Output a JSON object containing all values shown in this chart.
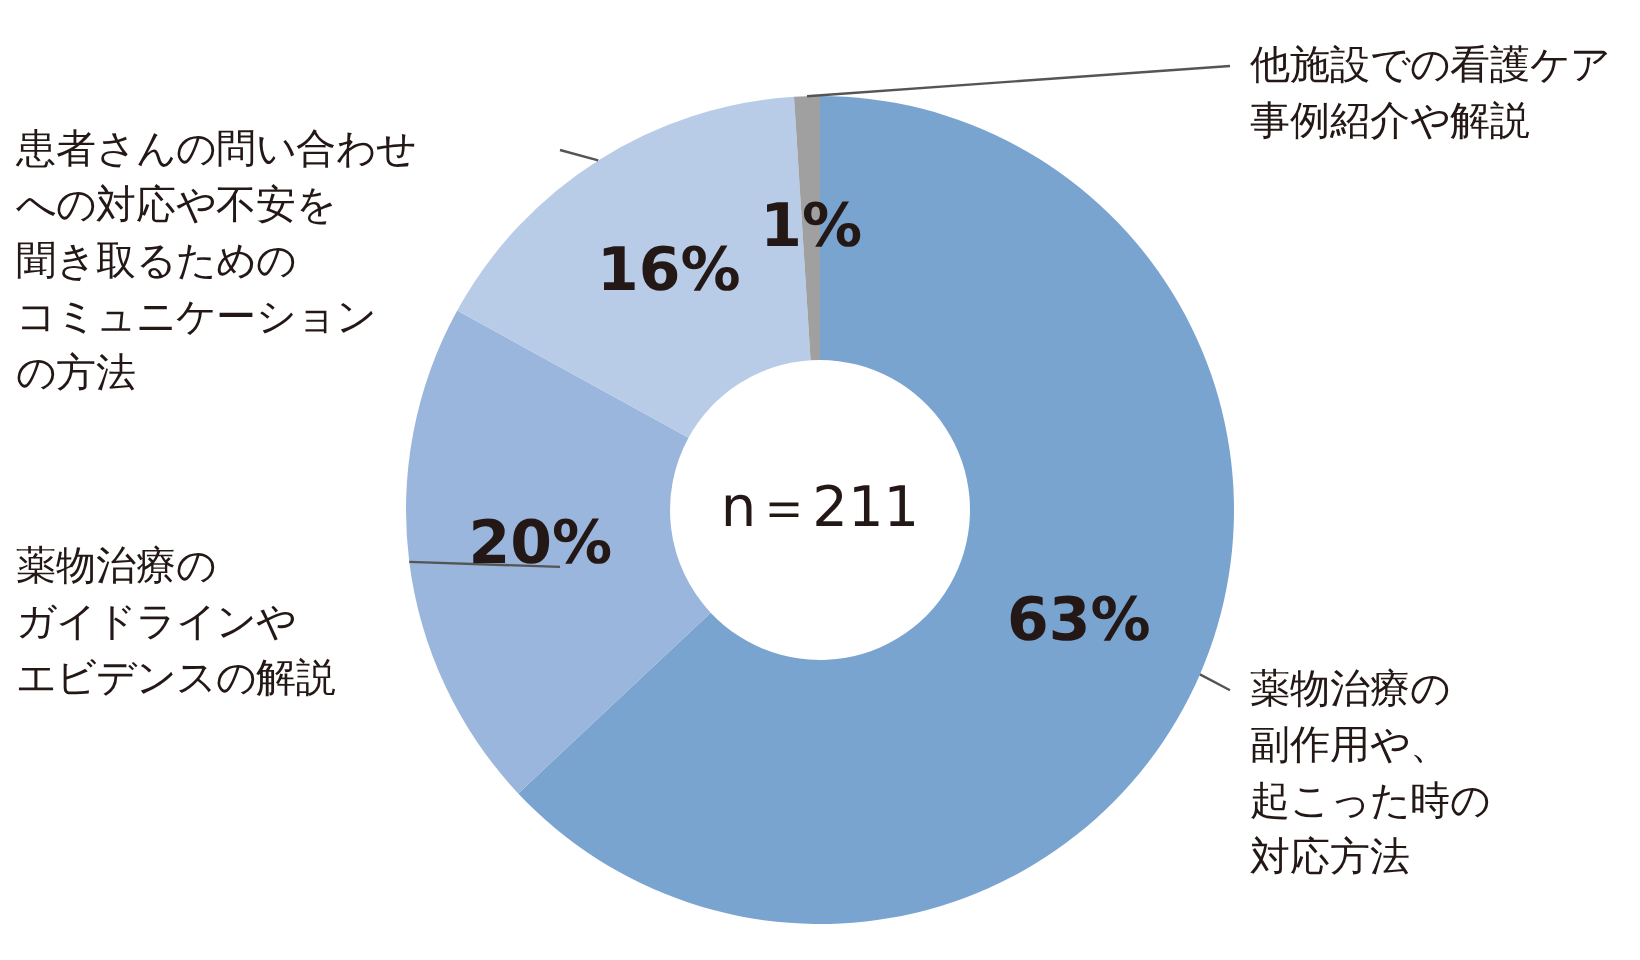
{
  "chart_data": {
    "type": "donut",
    "categories": [
      "薬物治療の副作用や、起こった時の対応方法",
      "薬物治療のガイドラインやエビデンスの解説",
      "患者さんの問い合わせへの対応や不安を聞き取るためのコミュニケーションの方法",
      "他施設での看護ケア事例紹介や解説"
    ],
    "values": [
      63,
      20,
      16,
      1
    ],
    "colors": [
      "#7aa4d0",
      "#9ab6dc",
      "#b8cce7",
      "#a0a0a0"
    ],
    "value_labels": [
      "63%",
      "20%",
      "16%",
      "1%"
    ],
    "annotations": [
      "n＝211"
    ]
  }
}
